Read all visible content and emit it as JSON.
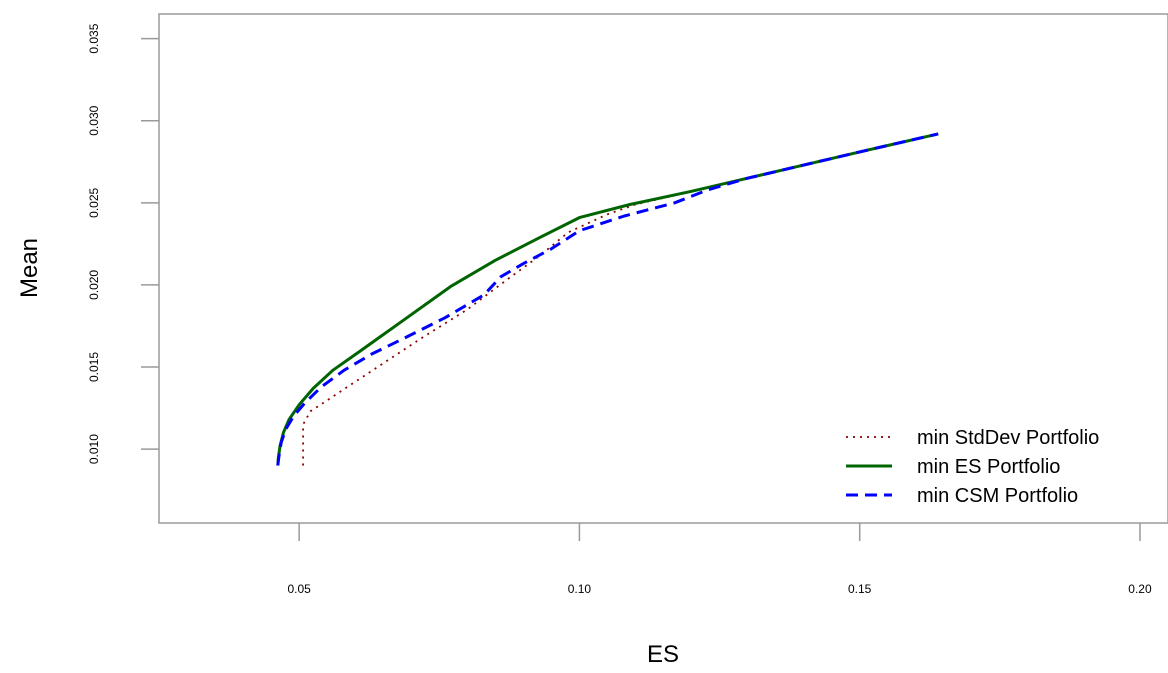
{
  "chart_data": {
    "type": "line",
    "title": "",
    "xlabel": "ES",
    "ylabel": "Mean",
    "xlim": [
      0.025,
      0.205
    ],
    "ylim": [
      0.0055,
      0.0365
    ],
    "xticks": [
      0.05,
      0.1,
      0.15,
      0.2
    ],
    "xtick_labels": [
      "0.05",
      "0.10",
      "0.15",
      "0.20"
    ],
    "yticks": [
      0.01,
      0.015,
      0.02,
      0.025,
      0.03,
      0.035
    ],
    "ytick_labels": [
      "0.010",
      "0.015",
      "0.020",
      "0.025",
      "0.030",
      "0.035"
    ],
    "grid": false,
    "legend_position": "bottom-right",
    "series": [
      {
        "name": "min StdDev Portfolio",
        "color": "#8b0000",
        "line_style": "dotted",
        "x": [
          0.0507,
          0.0507,
          0.052,
          0.056,
          0.064,
          0.072,
          0.08,
          0.087,
          0.093,
          0.098,
          0.105,
          0.11,
          0.12,
          0.13,
          0.14,
          0.15,
          0.164
        ],
        "y": [
          0.009,
          0.0115,
          0.0123,
          0.0132,
          0.015,
          0.0168,
          0.0185,
          0.0203,
          0.0218,
          0.0232,
          0.0243,
          0.0249,
          0.0257,
          0.0265,
          0.0273,
          0.0281,
          0.0292
        ]
      },
      {
        "name": "min ES Portfolio",
        "color": "#006400",
        "line_style": "solid",
        "x": [
          0.0462,
          0.0463,
          0.0466,
          0.0472,
          0.0482,
          0.05,
          0.0525,
          0.056,
          0.061,
          0.068,
          0.077,
          0.085,
          0.093,
          0.1,
          0.109,
          0.12,
          0.13,
          0.14,
          0.15,
          0.164
        ],
        "y": [
          0.009,
          0.0095,
          0.0102,
          0.011,
          0.0118,
          0.0127,
          0.0137,
          0.0148,
          0.016,
          0.0177,
          0.0199,
          0.0215,
          0.0229,
          0.0241,
          0.0249,
          0.0257,
          0.0265,
          0.0273,
          0.0281,
          0.0292
        ]
      },
      {
        "name": "min CSM Portfolio",
        "color": "#0000ff",
        "line_style": "dashed",
        "x": [
          0.0462,
          0.0464,
          0.0468,
          0.0476,
          0.049,
          0.051,
          0.054,
          0.058,
          0.063,
          0.069,
          0.076,
          0.083,
          0.086,
          0.09,
          0.095,
          0.1,
          0.108,
          0.117,
          0.123,
          0.13,
          0.14,
          0.15,
          0.164
        ],
        "y": [
          0.009,
          0.0096,
          0.0104,
          0.0112,
          0.012,
          0.0128,
          0.0138,
          0.0148,
          0.0158,
          0.0168,
          0.018,
          0.0194,
          0.0205,
          0.0213,
          0.0222,
          0.0233,
          0.0242,
          0.025,
          0.0258,
          0.0265,
          0.0273,
          0.0281,
          0.0292
        ]
      }
    ]
  }
}
